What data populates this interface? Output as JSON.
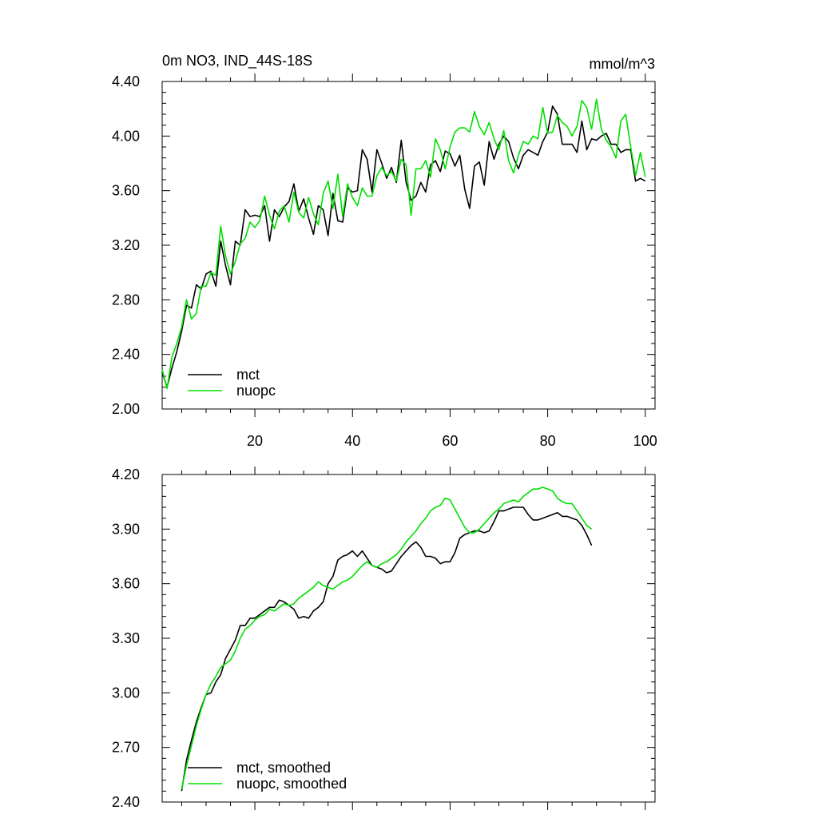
{
  "figure": {
    "title_left": "0m NO3, IND_44S-18S",
    "title_right": "mmol/m^3"
  },
  "colors": {
    "mct": "#000000",
    "nuopc": "#00e000",
    "axis": "#000000"
  },
  "chart_data": [
    {
      "type": "line",
      "title": "0m NO3, IND_44S-18S",
      "units": "mmol/m^3",
      "xlim": [
        1,
        102
      ],
      "ylim": [
        2.0,
        4.4
      ],
      "xticks": [
        20,
        40,
        60,
        80,
        100
      ],
      "xtick_labels": [
        "20",
        "40",
        "60",
        "80",
        "100"
      ],
      "yticks": [
        2.0,
        2.4,
        2.8,
        3.2,
        3.6,
        4.0,
        4.4
      ],
      "ytick_labels": [
        "2.00",
        "2.40",
        "2.80",
        "3.20",
        "3.60",
        "4.00",
        "4.40"
      ],
      "legend_position": "bottom-left",
      "grid": false,
      "series": [
        {
          "name": "mct",
          "x_start": 1,
          "values": [
            2.27,
            2.16,
            2.3,
            2.42,
            2.57,
            2.76,
            2.74,
            2.91,
            2.88,
            2.99,
            3.01,
            2.9,
            3.23,
            3.05,
            2.91,
            3.23,
            3.2,
            3.46,
            3.41,
            3.42,
            3.41,
            3.49,
            3.23,
            3.46,
            3.41,
            3.48,
            3.52,
            3.65,
            3.45,
            3.54,
            3.4,
            3.28,
            3.49,
            3.46,
            3.27,
            3.58,
            3.38,
            3.37,
            3.62,
            3.59,
            3.6,
            3.9,
            3.83,
            3.59,
            3.9,
            3.8,
            3.69,
            3.77,
            3.66,
            3.97,
            3.66,
            3.53,
            3.56,
            3.66,
            3.59,
            3.79,
            3.82,
            3.74,
            3.89,
            3.87,
            3.78,
            3.86,
            3.61,
            3.47,
            3.78,
            3.81,
            3.64,
            3.96,
            3.83,
            3.94,
            4.0,
            3.96,
            3.84,
            3.76,
            3.86,
            3.9,
            3.88,
            3.86,
            3.96,
            4.03,
            4.22,
            4.16,
            3.94,
            3.94,
            3.94,
            3.88,
            4.11,
            3.9,
            3.98,
            3.97,
            4.0,
            4.02,
            3.94,
            3.94,
            3.88,
            3.9,
            3.9,
            3.67,
            3.69,
            3.67
          ]
        },
        {
          "name": "nuopc",
          "x_start": 1,
          "values": [
            2.29,
            2.15,
            2.38,
            2.48,
            2.6,
            2.8,
            2.66,
            2.7,
            2.9,
            2.9,
            3.0,
            2.98,
            3.34,
            3.12,
            2.99,
            3.08,
            3.21,
            3.25,
            3.37,
            3.33,
            3.38,
            3.56,
            3.42,
            3.32,
            3.45,
            3.49,
            3.37,
            3.59,
            3.44,
            3.4,
            3.55,
            3.43,
            3.35,
            3.58,
            3.67,
            3.47,
            3.72,
            3.41,
            3.65,
            3.55,
            3.49,
            3.62,
            3.56,
            3.56,
            3.71,
            3.77,
            3.71,
            3.74,
            3.67,
            3.83,
            3.79,
            3.42,
            3.76,
            3.76,
            3.82,
            3.7,
            3.98,
            3.9,
            3.76,
            3.92,
            4.03,
            4.06,
            4.06,
            4.03,
            4.18,
            4.07,
            4.01,
            4.1,
            3.98,
            3.9,
            4.04,
            3.82,
            3.73,
            3.86,
            3.96,
            3.94,
            4.0,
            3.98,
            4.21,
            4.02,
            4.03,
            4.15,
            4.1,
            4.07,
            4.0,
            4.07,
            4.26,
            4.21,
            4.05,
            4.27,
            4.05,
            3.97,
            3.92,
            3.84,
            4.11,
            4.16,
            3.92,
            3.71,
            3.88,
            3.7
          ]
        }
      ]
    },
    {
      "type": "line",
      "xlim": [
        1,
        102
      ],
      "ylim": [
        2.4,
        4.2
      ],
      "xticks": [
        20,
        40,
        60,
        80,
        100
      ],
      "yticks": [
        2.4,
        2.7,
        3.0,
        3.3,
        3.6,
        3.9,
        4.2
      ],
      "ytick_labels": [
        "2.40",
        "2.70",
        "3.00",
        "3.30",
        "3.60",
        "3.90",
        "4.20"
      ],
      "legend_position": "bottom-left",
      "grid": false,
      "series": [
        {
          "name": "mct, smoothed",
          "x_start": 5,
          "values": [
            2.46,
            2.63,
            2.74,
            2.84,
            2.92,
            2.99,
            3.0,
            3.06,
            3.1,
            3.19,
            3.24,
            3.29,
            3.37,
            3.37,
            3.41,
            3.41,
            3.43,
            3.45,
            3.47,
            3.47,
            3.51,
            3.5,
            3.48,
            3.46,
            3.41,
            3.42,
            3.41,
            3.45,
            3.47,
            3.5,
            3.6,
            3.64,
            3.73,
            3.75,
            3.76,
            3.78,
            3.75,
            3.78,
            3.74,
            3.7,
            3.69,
            3.68,
            3.66,
            3.67,
            3.71,
            3.75,
            3.78,
            3.81,
            3.83,
            3.8,
            3.75,
            3.75,
            3.74,
            3.71,
            3.72,
            3.72,
            3.77,
            3.85,
            3.87,
            3.88,
            3.89,
            3.89,
            3.88,
            3.89,
            3.94,
            4.0,
            4.0,
            4.01,
            4.02,
            4.02,
            4.02,
            3.98,
            3.95,
            3.95,
            3.96,
            3.97,
            3.98,
            3.99,
            3.97,
            3.97,
            3.96,
            3.95,
            3.92,
            3.87,
            3.81
          ]
        },
        {
          "name": "nuopc, smoothed",
          "x_start": 5,
          "values": [
            2.47,
            2.6,
            2.71,
            2.82,
            2.91,
            2.99,
            3.05,
            3.09,
            3.14,
            3.16,
            3.18,
            3.23,
            3.3,
            3.35,
            3.37,
            3.4,
            3.42,
            3.43,
            3.46,
            3.45,
            3.47,
            3.49,
            3.48,
            3.49,
            3.52,
            3.54,
            3.56,
            3.58,
            3.61,
            3.59,
            3.58,
            3.57,
            3.59,
            3.61,
            3.62,
            3.64,
            3.67,
            3.7,
            3.72,
            3.7,
            3.69,
            3.71,
            3.72,
            3.74,
            3.76,
            3.79,
            3.83,
            3.86,
            3.89,
            3.93,
            3.96,
            4.0,
            4.02,
            4.03,
            4.07,
            4.06,
            4.01,
            3.96,
            3.91,
            3.88,
            3.88,
            3.9,
            3.93,
            3.96,
            3.99,
            4.01,
            4.04,
            4.05,
            4.06,
            4.05,
            4.08,
            4.1,
            4.12,
            4.12,
            4.13,
            4.12,
            4.11,
            4.07,
            4.05,
            4.04,
            4.04,
            4.0,
            3.96,
            3.92,
            3.9
          ]
        }
      ]
    }
  ]
}
